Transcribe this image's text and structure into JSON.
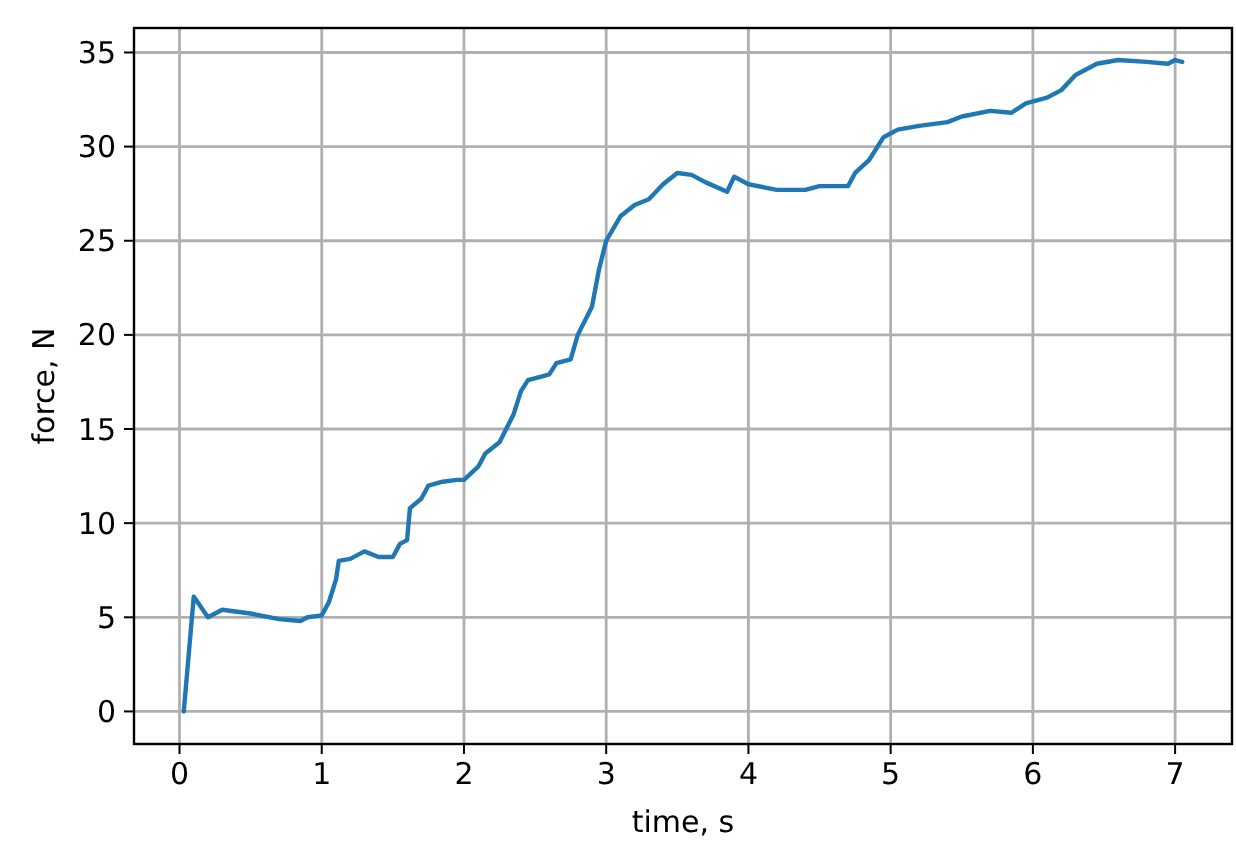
{
  "chart_data": {
    "type": "line",
    "xlabel": "time, s",
    "ylabel": "force, N",
    "xlim": [
      -0.32,
      7.4
    ],
    "ylim": [
      -1.73,
      36.3
    ],
    "xticks": [
      0,
      1,
      2,
      3,
      4,
      5,
      6,
      7
    ],
    "yticks": [
      0,
      5,
      10,
      15,
      20,
      25,
      30,
      35
    ],
    "grid": true,
    "line_style": "solid",
    "series": [
      {
        "color": "#1f77b4",
        "x": [
          0.03,
          0.1,
          0.2,
          0.3,
          0.5,
          0.7,
          0.85,
          0.9,
          1.0,
          1.05,
          1.1,
          1.12,
          1.2,
          1.3,
          1.4,
          1.5,
          1.55,
          1.6,
          1.62,
          1.7,
          1.75,
          1.85,
          1.95,
          2.0,
          2.1,
          2.15,
          2.25,
          2.35,
          2.4,
          2.45,
          2.55,
          2.6,
          2.65,
          2.75,
          2.8,
          2.9,
          2.95,
          3.0,
          3.1,
          3.2,
          3.3,
          3.4,
          3.5,
          3.6,
          3.7,
          3.85,
          3.9,
          4.0,
          4.2,
          4.4,
          4.5,
          4.7,
          4.75,
          4.85,
          4.95,
          5.05,
          5.2,
          5.4,
          5.5,
          5.7,
          5.85,
          5.95,
          6.1,
          6.2,
          6.3,
          6.45,
          6.6,
          6.8,
          6.95,
          7.0,
          7.05
        ],
        "values": [
          0,
          6.1,
          5.0,
          5.4,
          5.2,
          4.9,
          4.8,
          5.0,
          5.1,
          5.8,
          7.0,
          8.0,
          8.1,
          8.5,
          8.2,
          8.2,
          8.9,
          9.1,
          10.8,
          11.3,
          12.0,
          12.2,
          12.3,
          12.3,
          13.0,
          13.7,
          14.3,
          15.8,
          17.0,
          17.6,
          17.8,
          17.9,
          18.5,
          18.7,
          20.0,
          21.5,
          23.5,
          25.0,
          26.3,
          26.9,
          27.2,
          28.0,
          28.6,
          28.5,
          28.1,
          27.6,
          28.4,
          28.0,
          27.7,
          27.7,
          27.9,
          27.9,
          28.6,
          29.3,
          30.5,
          30.9,
          31.1,
          31.3,
          31.6,
          31.9,
          31.8,
          32.3,
          32.6,
          33.0,
          33.8,
          34.4,
          34.6,
          34.5,
          34.4,
          34.6,
          34.5
        ]
      }
    ]
  }
}
